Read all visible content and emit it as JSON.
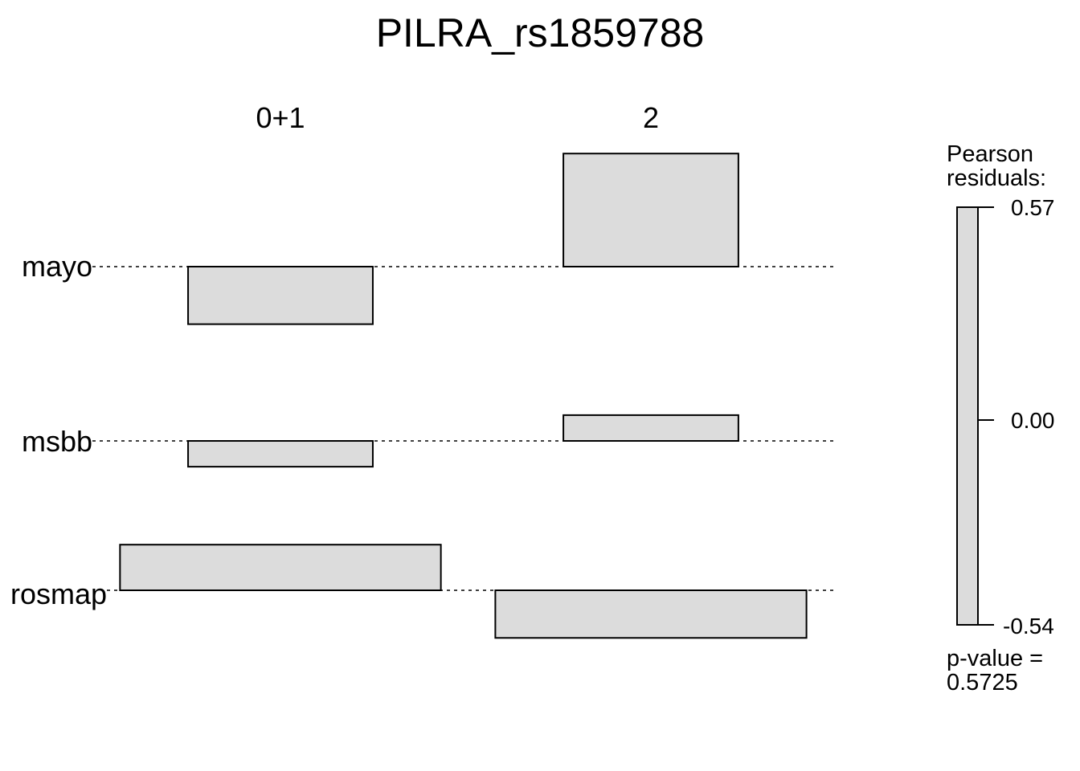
{
  "chart_data": {
    "type": "association",
    "title": "PILRA_rs1859788",
    "columns": [
      "0+1",
      "2"
    ],
    "rows": [
      "mayo",
      "msbb",
      "rosmap"
    ],
    "residuals": [
      [
        -0.29,
        0.57
      ],
      [
        -0.13,
        0.13
      ],
      [
        0.23,
        -0.24
      ]
    ],
    "expected": [
      [
        0.38,
        0.36
      ],
      [
        0.38,
        0.36
      ],
      [
        0.66,
        0.64
      ]
    ],
    "legend": {
      "title_line1": "Pearson",
      "title_line2": "residuals:",
      "ticks": [
        "0.57",
        "0.00",
        "-0.54"
      ],
      "max": 0.57,
      "min": -0.54
    },
    "pvalue_line1": "p-value =",
    "pvalue_line2": "0.5725"
  }
}
